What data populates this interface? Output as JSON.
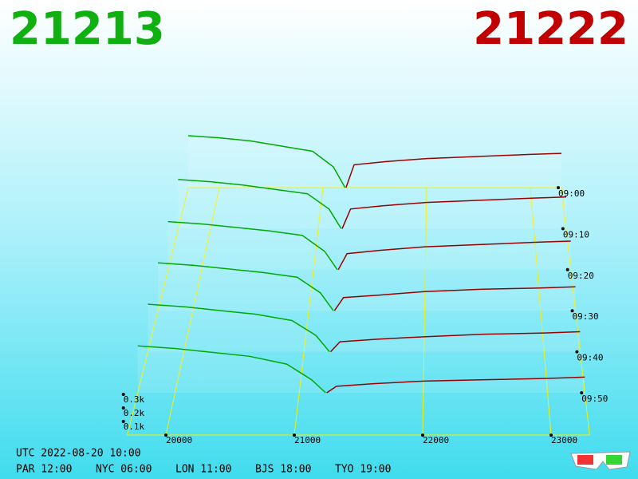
{
  "chart_data": {
    "type": "depth3d",
    "bid_price": "21213",
    "ask_price": "21222",
    "bid_color": "#00aa00",
    "ask_color": "#990000",
    "xticks": [
      20000,
      21000,
      22000,
      23000
    ],
    "xlim": [
      19700,
      23300
    ],
    "zticks": [
      {
        "value": 0.1,
        "label": "0.1k"
      },
      {
        "value": 0.2,
        "label": "0.2k"
      },
      {
        "value": 0.3,
        "label": "0.3k"
      }
    ],
    "times": [
      "09:00",
      "09:10",
      "09:20",
      "09:30",
      "09:40",
      "09:50"
    ],
    "bid_prices": [
      19700,
      20000,
      20300,
      20600,
      20900,
      21100,
      21213
    ],
    "ask_prices": [
      21222,
      21300,
      21600,
      22000,
      22500,
      23000,
      23300
    ],
    "bids": [
      [
        0.5,
        0.48,
        0.45,
        0.4,
        0.35,
        0.2,
        0
      ],
      [
        0.45,
        0.43,
        0.4,
        0.36,
        0.32,
        0.18,
        0
      ],
      [
        0.42,
        0.4,
        0.37,
        0.34,
        0.3,
        0.16,
        0
      ],
      [
        0.4,
        0.38,
        0.35,
        0.32,
        0.28,
        0.15,
        0
      ],
      [
        0.38,
        0.36,
        0.33,
        0.3,
        0.25,
        0.13,
        0
      ],
      [
        0.36,
        0.34,
        0.31,
        0.28,
        0.22,
        0.1,
        0
      ]
    ],
    "asks": [
      [
        0,
        0.22,
        0.25,
        0.28,
        0.3,
        0.32,
        0.33
      ],
      [
        0,
        0.18,
        0.21,
        0.24,
        0.26,
        0.28,
        0.29
      ],
      [
        0,
        0.14,
        0.17,
        0.2,
        0.22,
        0.24,
        0.25
      ],
      [
        0,
        0.11,
        0.13,
        0.16,
        0.18,
        0.19,
        0.2
      ],
      [
        0,
        0.08,
        0.1,
        0.12,
        0.14,
        0.15,
        0.16
      ],
      [
        0,
        0.05,
        0.07,
        0.09,
        0.1,
        0.11,
        0.12
      ]
    ],
    "footer": {
      "utc": "UTC 2022-08-20 10:00",
      "zones": [
        "PAR 12:00",
        "NYC 06:00",
        "LON 11:00",
        "BJS 18:00",
        "TYO 19:00"
      ]
    }
  }
}
